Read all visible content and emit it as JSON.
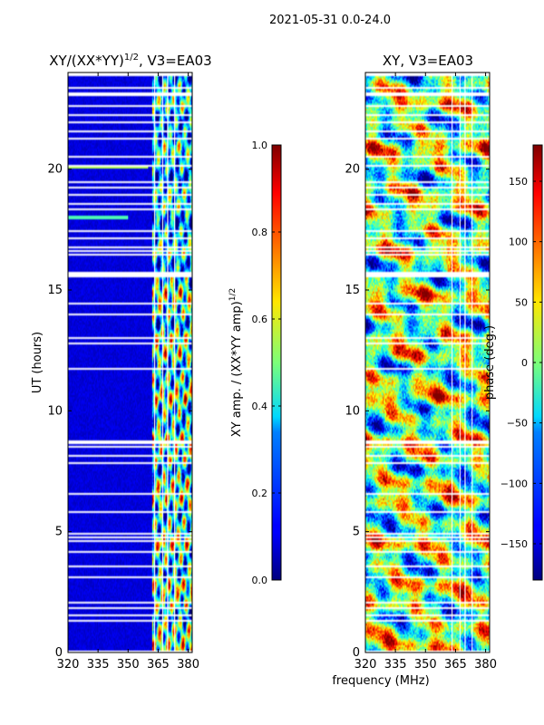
{
  "suptitle": "2021-05-31 0.0-24.0",
  "shared_xlabel": "frequency (MHz)",
  "colors": {
    "flag": "#ffffff",
    "axis": "#000000"
  },
  "chart_data": [
    {
      "type": "heatmap",
      "title_main": "XY/(XX*YY)",
      "title_exp": "1/2",
      "title_tail": ", V3=EA03",
      "xlabel": "",
      "ylabel": "UT (hours)",
      "xlim": [
        320,
        382
      ],
      "ylim": [
        0,
        24
      ],
      "xticks": [
        320,
        335,
        350,
        365,
        380
      ],
      "yticks": [
        0,
        5,
        10,
        15,
        20
      ],
      "colorbar": {
        "label_main": "XY amp. / (XX*YY amp)",
        "label_exp": "1/2",
        "range": [
          0.0,
          1.0
        ],
        "ticks": [
          "0.0",
          "0.2",
          "0.4",
          "0.6",
          "0.8",
          "1.0"
        ],
        "tick_values": [
          0.0,
          0.2,
          0.4,
          0.6,
          0.8,
          1.0
        ],
        "colormap": "jet"
      },
      "flagged_hours": [
        [
          0.0,
          0.04
        ],
        [
          1.3,
          1.36
        ],
        [
          1.52,
          1.58
        ],
        [
          1.8,
          1.86
        ],
        [
          2.05,
          2.12
        ],
        [
          2.3,
          2.36
        ],
        [
          2.45,
          2.5
        ],
        [
          3.1,
          3.15
        ],
        [
          3.35,
          3.4
        ],
        [
          3.52,
          3.58
        ],
        [
          3.65,
          3.7
        ],
        [
          4.12,
          4.18
        ],
        [
          4.58,
          4.63
        ],
        [
          4.75,
          4.8
        ],
        [
          4.9,
          4.95
        ],
        [
          5.6,
          5.65
        ],
        [
          5.8,
          5.88
        ],
        [
          6.55,
          6.6
        ],
        [
          7.55,
          7.6
        ],
        [
          7.8,
          7.85
        ],
        [
          8.1,
          8.16
        ],
        [
          8.45,
          8.55
        ],
        [
          8.6,
          8.8
        ],
        [
          11.7,
          11.75
        ],
        [
          12.75,
          12.8
        ],
        [
          13.0,
          13.06
        ],
        [
          13.95,
          14.0
        ],
        [
          14.4,
          14.45
        ],
        [
          14.9,
          14.94
        ],
        [
          15.05,
          15.1
        ],
        [
          15.35,
          15.4
        ],
        [
          15.55,
          15.75
        ],
        [
          15.8,
          15.85
        ],
        [
          16.1,
          16.15
        ],
        [
          16.25,
          16.3
        ],
        [
          16.45,
          16.5
        ],
        [
          16.6,
          16.65
        ],
        [
          16.75,
          16.8
        ],
        [
          17.1,
          17.15
        ],
        [
          17.4,
          17.45
        ],
        [
          17.75,
          17.8
        ],
        [
          18.3,
          18.35
        ],
        [
          18.55,
          18.6
        ],
        [
          18.9,
          18.95
        ],
        [
          19.2,
          19.26
        ],
        [
          19.45,
          19.5
        ],
        [
          19.85,
          19.9
        ],
        [
          20.1,
          20.16
        ],
        [
          20.5,
          20.56
        ],
        [
          20.75,
          20.8
        ],
        [
          21.2,
          21.3
        ],
        [
          21.55,
          21.6
        ],
        [
          21.9,
          21.95
        ],
        [
          22.2,
          22.25
        ],
        [
          22.55,
          22.65
        ],
        [
          23.05,
          23.2
        ],
        [
          23.35,
          23.42
        ],
        [
          23.6,
          23.65
        ],
        [
          23.85,
          24.0
        ]
      ],
      "flagged_freq_mhz": [
        [
          331.5,
          331.7
        ],
        [
          363.1,
          363.4
        ],
        [
          367.2,
          367.4
        ],
        [
          369.6,
          369.8
        ],
        [
          373.0,
          373.3
        ],
        [
          376.5,
          376.7
        ],
        [
          378.4,
          378.6
        ],
        [
          380.8,
          381.1
        ]
      ],
      "features": "low amplitude below 362 MHz; bright patchy structure 362-381 MHz"
    },
    {
      "type": "heatmap",
      "title_main": "XY, V3=EA03",
      "title_exp": "",
      "title_tail": "",
      "xlabel": "frequency (MHz)",
      "ylabel": "",
      "xlim": [
        320,
        382
      ],
      "ylim": [
        0,
        24
      ],
      "xticks": [
        320,
        335,
        350,
        365,
        380
      ],
      "yticks": [
        0,
        5,
        10,
        15,
        20
      ],
      "colorbar": {
        "label_main": "phase (deg.)",
        "label_exp": "",
        "range": [
          -180,
          180
        ],
        "ticks": [
          "−150",
          "−100",
          "−50",
          "0",
          "50",
          "100",
          "150"
        ],
        "tick_values": [
          -150,
          -100,
          -50,
          0,
          50,
          100,
          150
        ],
        "colormap": "jet"
      },
      "flagged_hours": [
        [
          0.0,
          0.04
        ],
        [
          1.3,
          1.36
        ],
        [
          1.52,
          1.58
        ],
        [
          1.8,
          1.86
        ],
        [
          2.05,
          2.12
        ],
        [
          2.3,
          2.36
        ],
        [
          2.45,
          2.5
        ],
        [
          3.1,
          3.15
        ],
        [
          3.35,
          3.4
        ],
        [
          3.52,
          3.58
        ],
        [
          3.65,
          3.7
        ],
        [
          4.12,
          4.18
        ],
        [
          4.58,
          4.63
        ],
        [
          4.75,
          4.8
        ],
        [
          4.9,
          4.95
        ],
        [
          5.6,
          5.65
        ],
        [
          5.8,
          5.88
        ],
        [
          6.55,
          6.6
        ],
        [
          7.55,
          7.6
        ],
        [
          7.8,
          7.85
        ],
        [
          8.1,
          8.16
        ],
        [
          8.45,
          8.55
        ],
        [
          8.6,
          8.8
        ],
        [
          11.7,
          11.75
        ],
        [
          12.75,
          12.8
        ],
        [
          13.0,
          13.06
        ],
        [
          13.95,
          14.0
        ],
        [
          14.4,
          14.45
        ],
        [
          14.9,
          14.94
        ],
        [
          15.05,
          15.1
        ],
        [
          15.35,
          15.4
        ],
        [
          15.55,
          15.75
        ],
        [
          15.8,
          15.85
        ],
        [
          16.1,
          16.15
        ],
        [
          16.25,
          16.3
        ],
        [
          16.45,
          16.5
        ],
        [
          16.6,
          16.65
        ],
        [
          16.75,
          16.8
        ],
        [
          17.1,
          17.15
        ],
        [
          17.4,
          17.45
        ],
        [
          17.75,
          17.8
        ],
        [
          18.3,
          18.35
        ],
        [
          18.55,
          18.6
        ],
        [
          18.9,
          18.95
        ],
        [
          19.2,
          19.26
        ],
        [
          19.45,
          19.5
        ],
        [
          19.85,
          19.9
        ],
        [
          20.1,
          20.16
        ],
        [
          20.5,
          20.56
        ],
        [
          20.75,
          20.8
        ],
        [
          21.2,
          21.3
        ],
        [
          21.55,
          21.6
        ],
        [
          21.9,
          21.95
        ],
        [
          22.2,
          22.25
        ],
        [
          22.55,
          22.65
        ],
        [
          23.05,
          23.2
        ],
        [
          23.35,
          23.42
        ],
        [
          23.6,
          23.65
        ],
        [
          23.85,
          24.0
        ]
      ],
      "flagged_freq_mhz": [
        [
          331.5,
          331.7
        ],
        [
          363.1,
          363.4
        ],
        [
          367.2,
          367.4
        ],
        [
          369.6,
          369.8
        ],
        [
          373.0,
          373.3
        ],
        [
          376.5,
          376.7
        ],
        [
          378.4,
          378.6
        ],
        [
          380.8,
          381.1
        ]
      ],
      "features": "phase spread over full range with banded structure"
    }
  ]
}
